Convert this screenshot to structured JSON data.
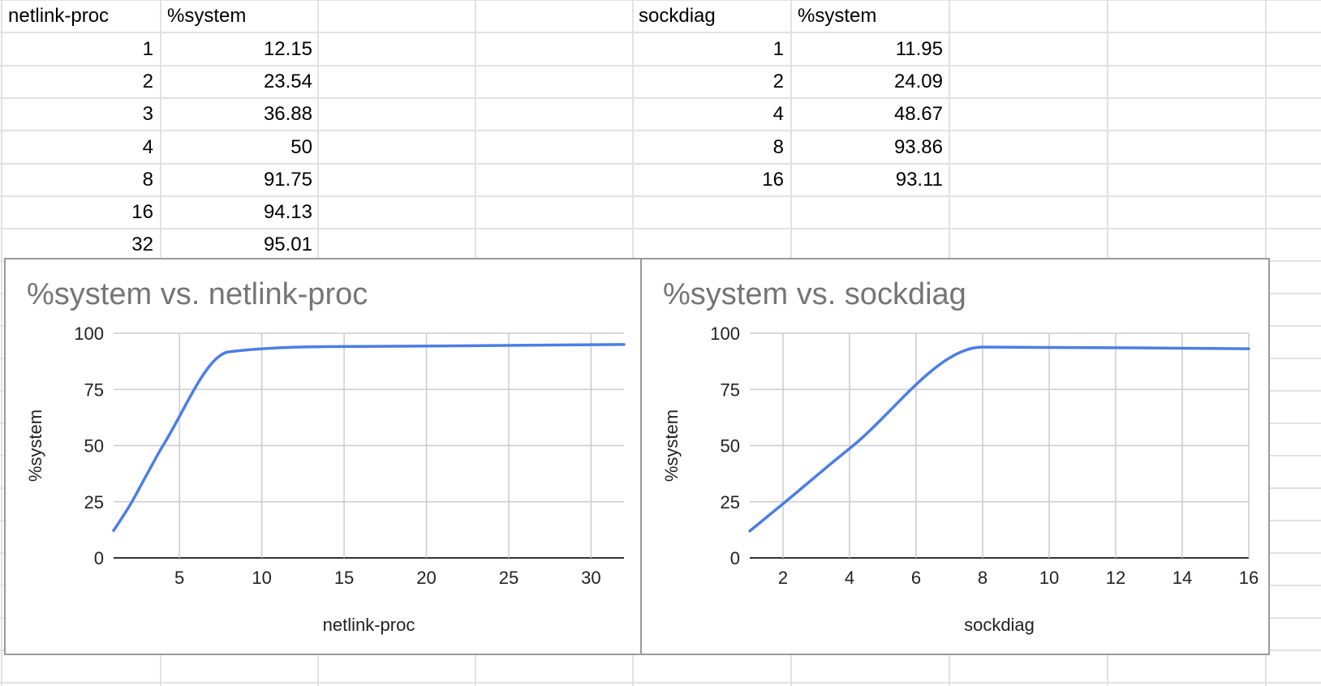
{
  "table_left": {
    "headers": [
      "netlink-proc",
      "%system"
    ],
    "rows": [
      [
        "1",
        "12.15"
      ],
      [
        "2",
        "23.54"
      ],
      [
        "3",
        "36.88"
      ],
      [
        "4",
        "50"
      ],
      [
        "8",
        "91.75"
      ],
      [
        "16",
        "94.13"
      ],
      [
        "32",
        "95.01"
      ]
    ]
  },
  "table_right": {
    "headers": [
      "sockdiag",
      "%system"
    ],
    "rows": [
      [
        "1",
        "11.95"
      ],
      [
        "2",
        "24.09"
      ],
      [
        "4",
        "48.67"
      ],
      [
        "8",
        "93.86"
      ],
      [
        "16",
        "93.11"
      ]
    ]
  },
  "chart_data": [
    {
      "type": "line",
      "title": "%system  vs. netlink-proc",
      "xlabel": "netlink-proc",
      "ylabel": "%system",
      "x": [
        1,
        2,
        3,
        4,
        8,
        16,
        32
      ],
      "series": [
        {
          "values": [
            12.15,
            23.54,
            36.88,
            50,
            91.75,
            94.13,
            95.01
          ]
        }
      ],
      "xlim": [
        1,
        32
      ],
      "ylim": [
        0,
        100
      ],
      "xticks": [
        5,
        10,
        15,
        20,
        25,
        30
      ],
      "yticks": [
        0,
        25,
        50,
        75,
        100
      ],
      "grid": true,
      "smooth": true,
      "line_color": "#4a7ee6"
    },
    {
      "type": "line",
      "title": "%system vs. sockdiag",
      "xlabel": "sockdiag",
      "ylabel": "%system",
      "x": [
        1,
        2,
        4,
        8,
        16
      ],
      "series": [
        {
          "values": [
            11.95,
            24.09,
            48.67,
            93.86,
            93.11
          ]
        }
      ],
      "xlim": [
        1,
        16
      ],
      "ylim": [
        0,
        100
      ],
      "xticks": [
        2,
        4,
        6,
        8,
        10,
        12,
        14,
        16
      ],
      "yticks": [
        0,
        25,
        50,
        75,
        100
      ],
      "grid": true,
      "smooth": true,
      "line_color": "#4a7ee6"
    }
  ],
  "colors": {
    "gridline": "#e2e2e2",
    "chart_grid": "#cccccc",
    "axis": "#333333",
    "title_text": "#757575",
    "panel_border": "#9a9a9a",
    "series": "#4a7ee6"
  }
}
